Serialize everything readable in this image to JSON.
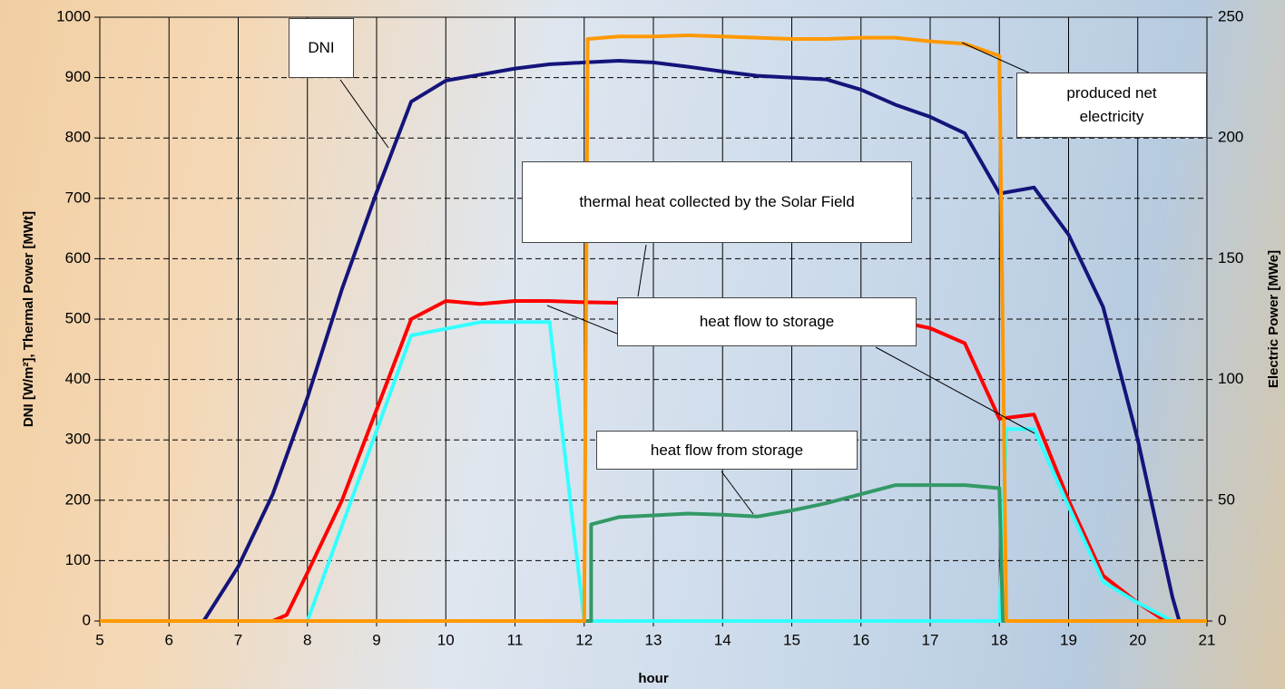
{
  "chart_data": {
    "type": "line",
    "x_label": "hour",
    "y_label": "DNI [W/m²], Thermal Power [MWt]",
    "y2_label": "Electric Power [MWe]",
    "xlim": [
      5,
      21
    ],
    "xticks": [
      5,
      6,
      7,
      8,
      9,
      10,
      11,
      12,
      13,
      14,
      15,
      16,
      17,
      18,
      19,
      20,
      21
    ],
    "ylim": [
      0,
      1000
    ],
    "yticks": [
      0,
      100,
      200,
      300,
      400,
      500,
      600,
      700,
      800,
      900,
      1000
    ],
    "y2lim": [
      0,
      250
    ],
    "y2ticks": [
      0,
      50,
      100,
      150,
      200,
      250
    ],
    "grid": true,
    "series": [
      {
        "name": "DNI",
        "color": "#14147a",
        "x": [
          5,
          6,
          6.5,
          7,
          7.5,
          8,
          8.5,
          9,
          9.5,
          10,
          10.5,
          11,
          11.5,
          12,
          12.5,
          13,
          13.5,
          14,
          14.5,
          15,
          15.5,
          16,
          16.5,
          17,
          17.5,
          18,
          18.5,
          19,
          19.5,
          20,
          20.5,
          20.6,
          21
        ],
        "values": [
          0,
          0,
          0,
          90,
          210,
          370,
          550,
          710,
          860,
          895,
          905,
          915,
          922,
          925,
          928,
          925,
          918,
          910,
          903,
          900,
          897,
          880,
          855,
          835,
          808,
          708,
          718,
          640,
          520,
          300,
          40,
          0,
          0
        ]
      },
      {
        "name": "thermal heat collected by the Solar Field",
        "color": "#ff0000",
        "x": [
          5,
          7.5,
          7.7,
          8,
          8.5,
          9,
          9.5,
          10,
          10.5,
          11,
          11.5,
          12,
          12.5,
          13,
          13.5,
          14,
          14.5,
          15,
          15.5,
          16,
          16.5,
          17,
          17.5,
          18,
          18.5,
          19,
          19.5,
          20,
          20.4
        ],
        "values": [
          0,
          0,
          10,
          80,
          200,
          350,
          500,
          530,
          525,
          530,
          530,
          528,
          527,
          522,
          520,
          518,
          518,
          525,
          525,
          510,
          497,
          485,
          460,
          335,
          342,
          200,
          75,
          30,
          0
        ]
      },
      {
        "name": "heat flow to storage",
        "color": "#33ffff",
        "x": [
          5,
          8,
          9.5,
          10.5,
          11.5,
          12,
          18,
          18.1,
          18.5,
          19,
          19.5,
          20,
          20.5
        ],
        "values": [
          0,
          0,
          473,
          495,
          495,
          0,
          0,
          318,
          318,
          190,
          65,
          30,
          0
        ]
      },
      {
        "name": "heat flow from storage",
        "color": "#339966",
        "x": [
          5,
          12.1,
          12.1,
          12.5,
          13,
          13.5,
          14,
          14.5,
          15,
          15.5,
          16,
          16.5,
          17,
          17.5,
          18,
          18.05,
          21
        ],
        "values": [
          0,
          0,
          160,
          172,
          175,
          178,
          176,
          173,
          183,
          195,
          210,
          225,
          225,
          225,
          220,
          0,
          0
        ]
      },
      {
        "name": "produced net electricity",
        "color": "#ff9900",
        "axis": "y2",
        "x": [
          5,
          12,
          12.05,
          12.5,
          13,
          13.5,
          14,
          14.5,
          15,
          15.5,
          16,
          16.5,
          17,
          17.5,
          18,
          18.1,
          21
        ],
        "values": [
          0,
          0,
          241,
          242,
          242,
          242.5,
          242,
          241.5,
          241,
          241,
          241.5,
          241.5,
          240,
          239,
          234,
          0,
          0
        ]
      }
    ]
  }
}
